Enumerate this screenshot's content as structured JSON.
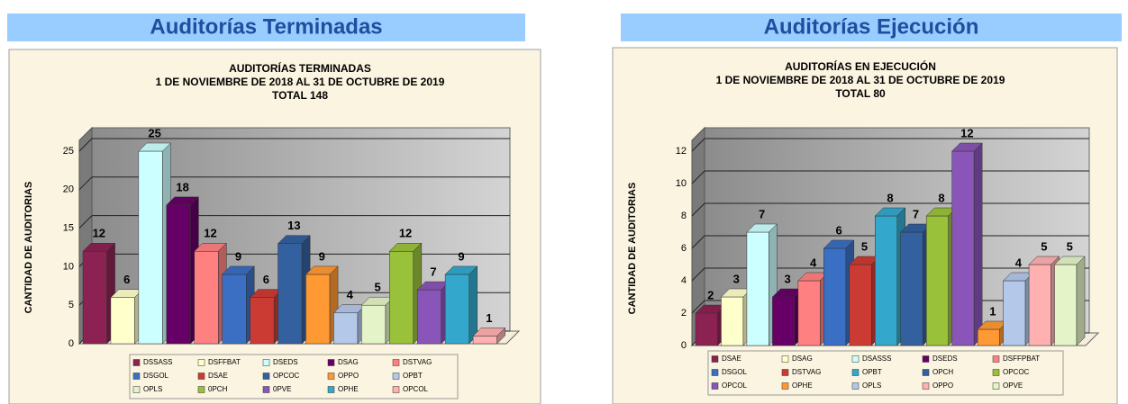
{
  "chart_data": [
    {
      "type": "bar3d",
      "header": "Auditorías Terminadas",
      "title_lines": [
        "AUDITORÍAS TERMINADAS",
        "1 DE NOVIEMBRE DE 2018 AL 31 DE OCTUBRE DE 2019",
        "TOTAL 148"
      ],
      "y_label": "CANTIDAD DE AUDITORIAS",
      "ylim": [
        0,
        25
      ],
      "yticks": [
        0,
        5,
        10,
        15,
        20,
        25
      ],
      "grid": true,
      "series": [
        {
          "name": "DSSASS",
          "color": "#8b2252",
          "values": [
            12
          ]
        },
        {
          "name": "DSFFBAT",
          "color": "#ffffcc",
          "values": [
            6
          ]
        },
        {
          "name": "DSEDS",
          "color": "#ccffff",
          "values": [
            25
          ]
        },
        {
          "name": "DSAG",
          "color": "#660066",
          "values": [
            18
          ]
        },
        {
          "name": "DSTVAG",
          "color": "#ff8080",
          "values": [
            12
          ]
        },
        {
          "name": "DSGOL",
          "color": "#3a6fc4",
          "values": [
            9
          ]
        },
        {
          "name": "DSAE",
          "color": "#cc3b33",
          "values": [
            6
          ]
        },
        {
          "name": "OPCOC",
          "color": "#33609e",
          "values": [
            13
          ]
        },
        {
          "name": "OPPO",
          "color": "#ff9933",
          "values": [
            9
          ]
        },
        {
          "name": "OPBT",
          "color": "#b4c8ea",
          "values": [
            4
          ]
        },
        {
          "name": "OPLS",
          "color": "#e4f4c8",
          "values": [
            5
          ]
        },
        {
          "name": "0PCH",
          "color": "#99c13a",
          "values": [
            12
          ]
        },
        {
          "name": "0PVE",
          "color": "#8a55b8",
          "values": [
            7
          ]
        },
        {
          "name": "OPHE",
          "color": "#33a8cc",
          "values": [
            9
          ]
        },
        {
          "name": "OPCOL",
          "color": "#ffb0b0",
          "values": [
            1
          ]
        }
      ]
    },
    {
      "type": "bar3d",
      "header": "Auditorías Ejecución",
      "title_lines": [
        "AUDITORÍAS EN EJECUCIÓN",
        "1 DE NOVIEMBRE DE 2018 AL 31 DE OCTUBRE DE 2019",
        "TOTAL 80"
      ],
      "y_label": "CANTIDAD DE AUDITORIAS",
      "ylim": [
        0,
        12
      ],
      "yticks": [
        0,
        2,
        4,
        6,
        8,
        10,
        12
      ],
      "grid": true,
      "series": [
        {
          "name": "DSAE",
          "color": "#8b2252",
          "values": [
            2
          ]
        },
        {
          "name": "DSAG",
          "color": "#ffffcc",
          "values": [
            3
          ]
        },
        {
          "name": "DSASSS",
          "color": "#ccffff",
          "values": [
            7
          ]
        },
        {
          "name": "DSEDS",
          "color": "#660066",
          "values": [
            3
          ]
        },
        {
          "name": "DSFFPBAT",
          "color": "#ff8080",
          "values": [
            4
          ]
        },
        {
          "name": "DSGOL",
          "color": "#3a6fc4",
          "values": [
            6
          ]
        },
        {
          "name": "DSTVAG",
          "color": "#cc3b33",
          "values": [
            5
          ]
        },
        {
          "name": "OPBT",
          "color": "#33a8cc",
          "values": [
            8
          ]
        },
        {
          "name": "OPCH",
          "color": "#33609e",
          "values": [
            7
          ]
        },
        {
          "name": "OPCOC",
          "color": "#99c13a",
          "values": [
            8
          ]
        },
        {
          "name": "OPCOL",
          "color": "#8a55b8",
          "values": [
            12
          ]
        },
        {
          "name": "OPHE",
          "color": "#ff9933",
          "values": [
            1
          ]
        },
        {
          "name": "OPLS",
          "color": "#b4c8ea",
          "values": [
            4
          ]
        },
        {
          "name": "OPPO",
          "color": "#ffb0b0",
          "values": [
            5
          ]
        },
        {
          "name": "OPVE",
          "color": "#e4f4c8",
          "values": [
            5
          ]
        }
      ]
    }
  ]
}
